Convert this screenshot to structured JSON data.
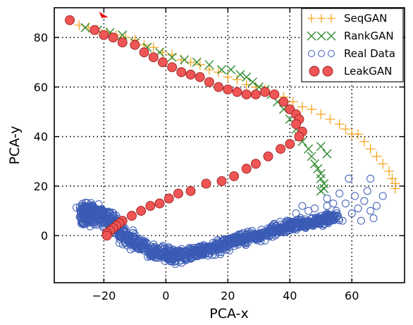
{
  "chart_data": {
    "type": "scatter",
    "xlabel": "PCA-x",
    "ylabel": "PCA-y",
    "xlim": [
      -36,
      77
    ],
    "ylim": [
      -19,
      92
    ],
    "xticks": [
      -20,
      0,
      20,
      40,
      60
    ],
    "yticks": [
      0,
      20,
      40,
      60,
      80
    ],
    "xtick_labels": [
      "−20",
      "0",
      "20",
      "40",
      "60"
    ],
    "ytick_labels": [
      "0",
      "20",
      "40",
      "60",
      "80"
    ],
    "grid": true,
    "legend_position": "top-right",
    "series": [
      {
        "name": "SeqGAN",
        "marker": "plus",
        "color": "#f5a623",
        "points": [
          [
            -31,
            87
          ],
          [
            -28,
            85
          ],
          [
            -25,
            84
          ],
          [
            -22,
            83
          ],
          [
            -19,
            82
          ],
          [
            -16,
            81
          ],
          [
            -13,
            80
          ],
          [
            -10,
            79
          ],
          [
            -7,
            77
          ],
          [
            -4,
            76
          ],
          [
            -1,
            74
          ],
          [
            2,
            73
          ],
          [
            5,
            71
          ],
          [
            8,
            70
          ],
          [
            11,
            69
          ],
          [
            14,
            67
          ],
          [
            17,
            66
          ],
          [
            20,
            64
          ],
          [
            23,
            63
          ],
          [
            26,
            61
          ],
          [
            29,
            60
          ],
          [
            32,
            59
          ],
          [
            35,
            57
          ],
          [
            38,
            56
          ],
          [
            41,
            54
          ],
          [
            44,
            52
          ],
          [
            47,
            51
          ],
          [
            50,
            49
          ],
          [
            53,
            47
          ],
          [
            56,
            45
          ],
          [
            58,
            43
          ],
          [
            60,
            41
          ],
          [
            62,
            41
          ],
          [
            64,
            38
          ],
          [
            66,
            35
          ],
          [
            68,
            32
          ],
          [
            70,
            29
          ],
          [
            72,
            26
          ],
          [
            73,
            23
          ],
          [
            74,
            21
          ],
          [
            74,
            19
          ]
        ]
      },
      {
        "name": "RankGAN",
        "marker": "cross",
        "color": "#2e8b2e",
        "points": [
          [
            -26,
            84
          ],
          [
            -22,
            83
          ],
          [
            -18,
            82
          ],
          [
            -14,
            81
          ],
          [
            -10,
            78
          ],
          [
            -6,
            76
          ],
          [
            -2,
            74
          ],
          [
            2,
            72
          ],
          [
            6,
            71
          ],
          [
            10,
            70
          ],
          [
            14,
            69
          ],
          [
            18,
            67
          ],
          [
            21,
            67
          ],
          [
            24,
            65
          ],
          [
            26,
            64
          ],
          [
            28,
            62
          ],
          [
            30,
            60
          ],
          [
            32,
            59
          ],
          [
            34,
            57
          ],
          [
            36,
            54
          ],
          [
            38,
            51
          ],
          [
            40,
            47
          ],
          [
            42,
            43
          ],
          [
            43,
            40
          ],
          [
            44,
            38
          ],
          [
            46,
            35
          ],
          [
            47,
            32
          ],
          [
            48,
            29
          ],
          [
            49,
            27
          ],
          [
            50,
            25
          ],
          [
            50,
            23
          ],
          [
            51,
            21
          ],
          [
            51,
            19
          ],
          [
            50,
            18
          ],
          [
            50,
            36
          ],
          [
            52,
            33
          ]
        ]
      },
      {
        "name": "Real Data",
        "marker": "hollow-circle",
        "color": "#3a5bb5",
        "generator": "manifold",
        "outlier_points": [
          [
            48,
            11
          ],
          [
            50,
            8
          ],
          [
            52,
            12
          ],
          [
            55,
            10
          ],
          [
            58,
            13
          ],
          [
            60,
            9
          ],
          [
            62,
            11
          ],
          [
            64,
            14
          ],
          [
            66,
            10
          ],
          [
            68,
            12
          ],
          [
            70,
            16
          ],
          [
            59,
            23
          ],
          [
            66,
            23
          ],
          [
            52,
            15
          ],
          [
            56,
            17
          ],
          [
            63,
            6
          ],
          [
            57,
            6
          ],
          [
            67,
            7
          ],
          [
            61,
            16
          ],
          [
            54,
            13
          ],
          [
            46,
            10
          ],
          [
            44,
            12
          ],
          [
            42,
            9
          ],
          [
            65,
            18
          ]
        ]
      },
      {
        "name": "LeakGAN",
        "marker": "filled-circle",
        "color": "#f05555",
        "points": [
          [
            -31,
            87
          ],
          [
            -23,
            83
          ],
          [
            -20,
            81
          ],
          [
            -17,
            80
          ],
          [
            -14,
            78
          ],
          [
            -10,
            77
          ],
          [
            -7,
            74
          ],
          [
            -4,
            72
          ],
          [
            -1,
            70
          ],
          [
            2,
            68
          ],
          [
            5,
            66
          ],
          [
            8,
            65
          ],
          [
            11,
            64
          ],
          [
            14,
            62
          ],
          [
            17,
            60
          ],
          [
            20,
            59
          ],
          [
            23,
            58
          ],
          [
            26,
            57
          ],
          [
            29,
            57
          ],
          [
            32,
            58
          ],
          [
            35,
            57
          ],
          [
            38,
            54
          ],
          [
            40,
            51
          ],
          [
            42,
            49
          ],
          [
            43,
            47
          ],
          [
            42,
            45
          ],
          [
            44,
            42
          ],
          [
            43,
            40
          ],
          [
            40,
            37
          ],
          [
            37,
            35
          ],
          [
            33,
            32
          ],
          [
            29,
            29
          ],
          [
            26,
            27
          ],
          [
            22,
            24
          ],
          [
            18,
            22
          ],
          [
            13,
            21
          ],
          [
            8,
            18
          ],
          [
            4,
            17
          ],
          [
            1,
            15
          ],
          [
            -2,
            13
          ],
          [
            -5,
            12
          ],
          [
            -8,
            10
          ],
          [
            -11,
            8
          ],
          [
            -14,
            6
          ],
          [
            -15,
            5
          ],
          [
            -16,
            4
          ],
          [
            -17,
            3
          ],
          [
            -18,
            2
          ],
          [
            -19,
            1
          ],
          [
            -19,
            0
          ]
        ],
        "start_marker": [
          -20,
          89
        ]
      }
    ]
  }
}
